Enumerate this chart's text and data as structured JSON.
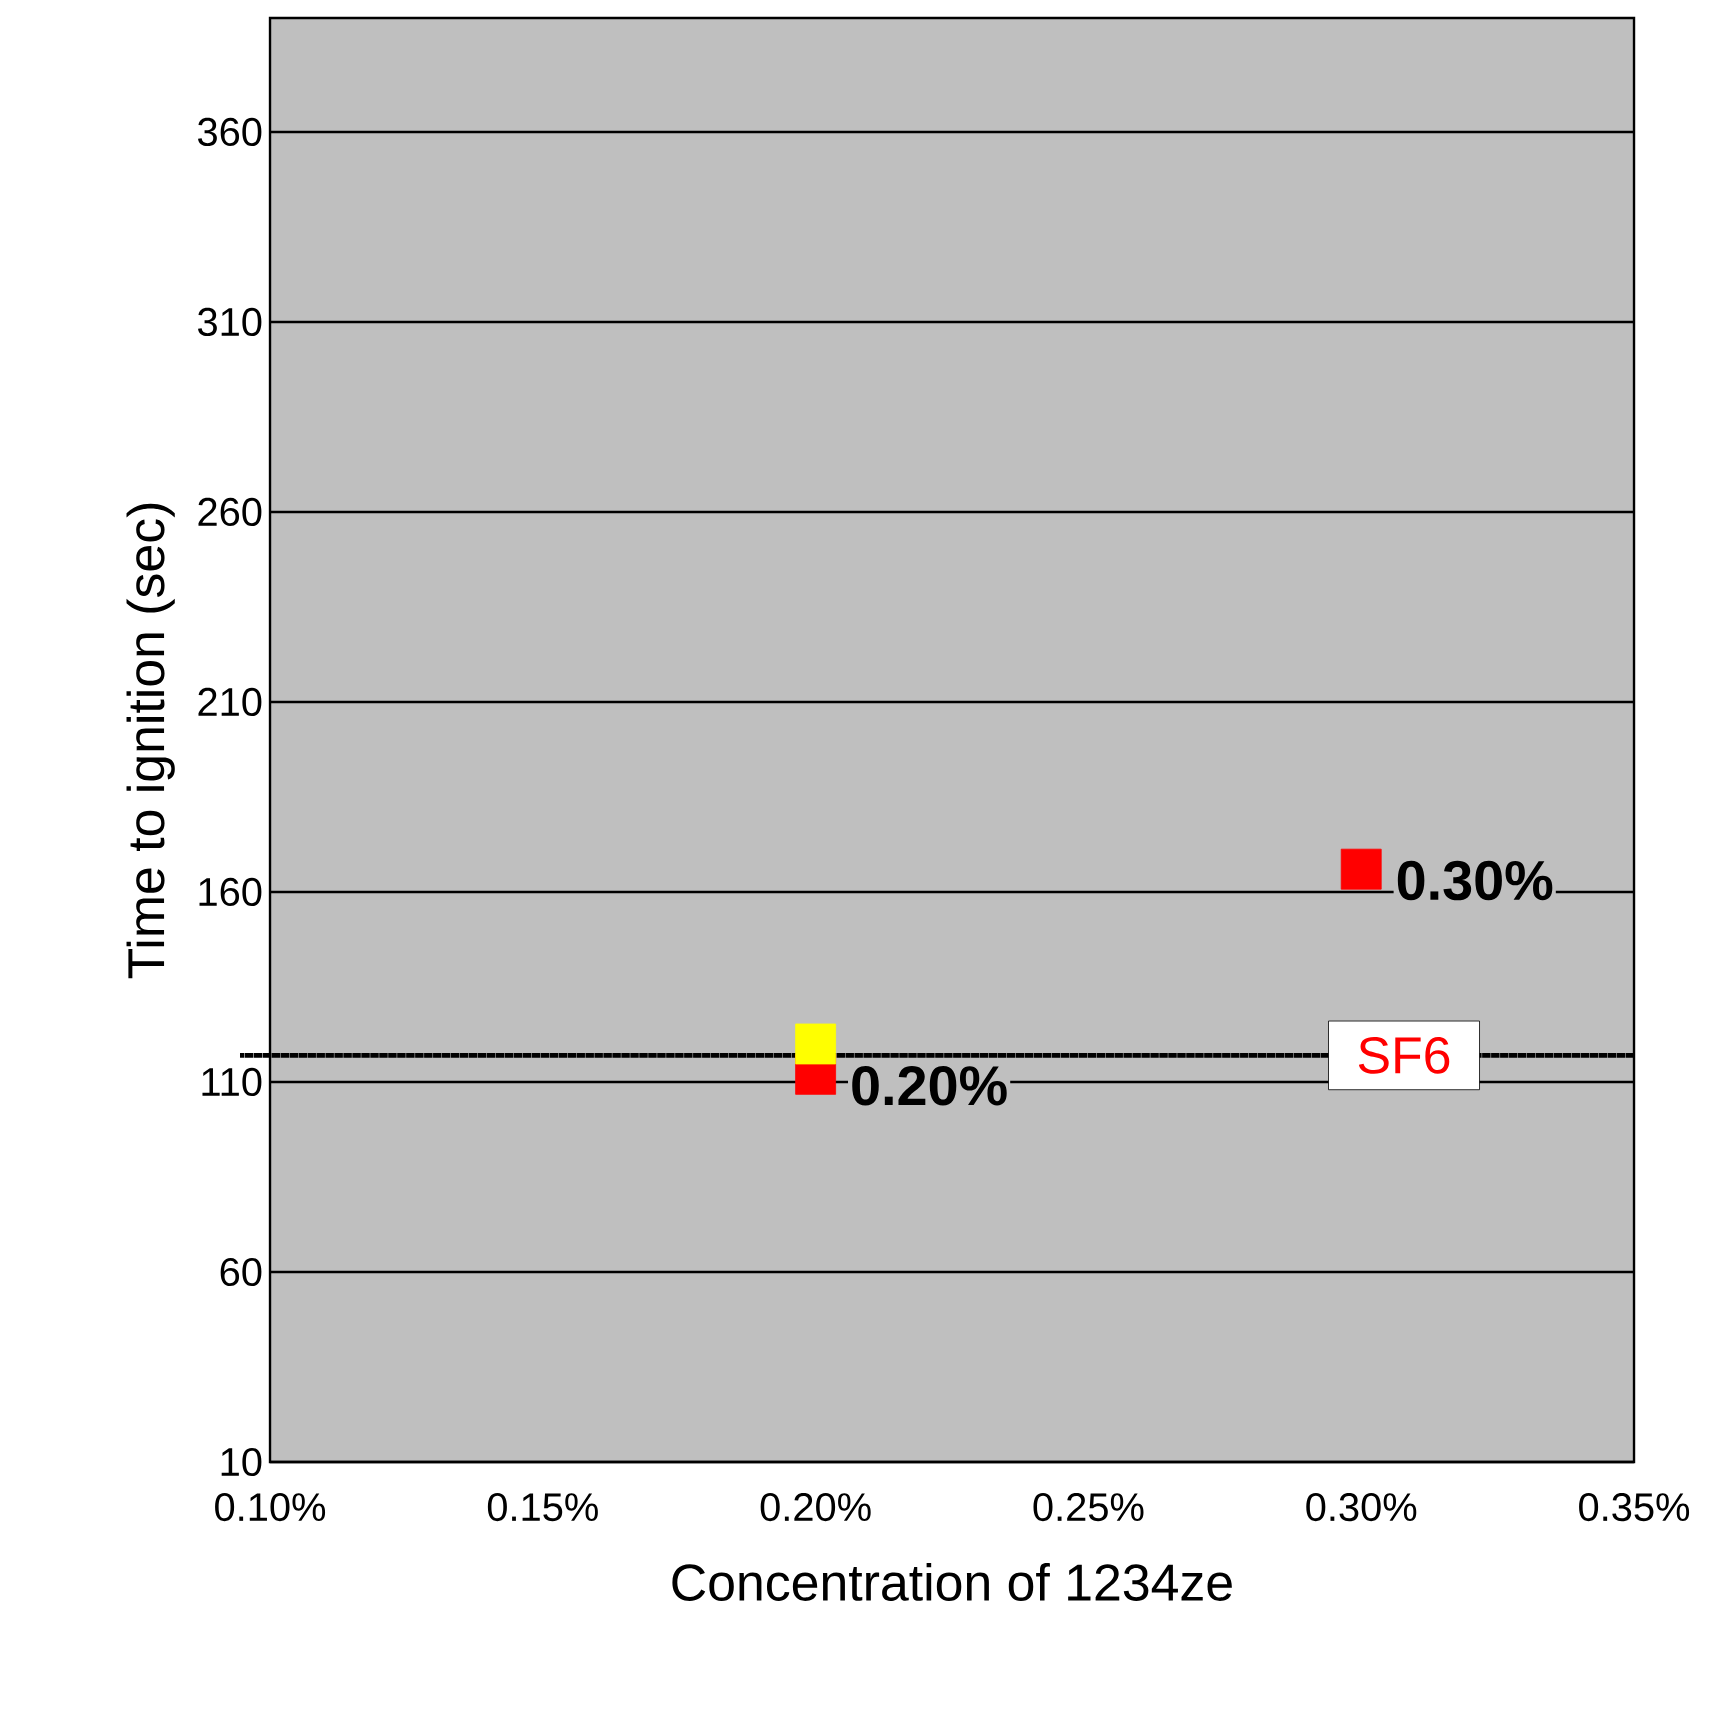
{
  "chart_data": {
    "type": "scatter",
    "xlabel": "Concentration of 1234ze",
    "ylabel": "Time to ignition (sec)",
    "xlim": [
      0.1,
      0.35
    ],
    "ylim": [
      10,
      390
    ],
    "xticks": [
      {
        "value": 0.1,
        "label": "0.10%"
      },
      {
        "value": 0.15,
        "label": "0.15%"
      },
      {
        "value": 0.2,
        "label": "0.20%"
      },
      {
        "value": 0.25,
        "label": "0.25%"
      },
      {
        "value": 0.3,
        "label": "0.30%"
      },
      {
        "value": 0.35,
        "label": "0.35%"
      }
    ],
    "yticks": [
      10,
      60,
      110,
      160,
      210,
      260,
      310,
      360
    ],
    "grid": "y",
    "marker": "square",
    "x": [
      0.2,
      0.3
    ],
    "series": [
      {
        "color": "#ff0000",
        "values": [
          112,
          166
        ]
      },
      {
        "color": "#ffff00",
        "values": [
          120,
          null
        ]
      }
    ],
    "ref_lines": [
      {
        "axis": "y",
        "value": 117,
        "label": "SF6",
        "color": "#000000",
        "line_style": "dotted"
      }
    ],
    "annotations": [
      {
        "text": "0.20%",
        "x": 0.2,
        "y": 109
      },
      {
        "text": "0.30%",
        "x": 0.3,
        "y": 163
      }
    ]
  }
}
